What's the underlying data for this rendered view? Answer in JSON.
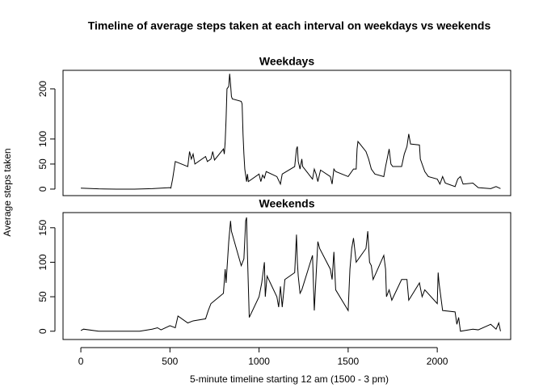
{
  "title": "Timeline of average steps taken at each interval on weekdays vs weekends",
  "x_label": "5-minute timeline starting 12 am (1500 - 3 pm)",
  "y_label": "Average steps taken",
  "chart_data": [
    {
      "type": "line",
      "title": "Weekdays",
      "color": "#000000",
      "x": [
        0,
        100,
        200,
        300,
        400,
        500,
        505,
        515,
        530,
        600,
        610,
        620,
        630,
        640,
        700,
        710,
        730,
        740,
        750,
        800,
        805,
        810,
        815,
        820,
        830,
        835,
        840,
        845,
        850,
        900,
        905,
        910,
        915,
        920,
        930,
        935,
        940,
        1000,
        1010,
        1020,
        1030,
        1040,
        1100,
        1120,
        1130,
        1200,
        1210,
        1215,
        1220,
        1230,
        1240,
        1245,
        1300,
        1310,
        1320,
        1330,
        1345,
        1400,
        1410,
        1420,
        1430,
        1500,
        1530,
        1545,
        1550,
        1555,
        1600,
        1615,
        1630,
        1650,
        1700,
        1710,
        1730,
        1740,
        1750,
        1800,
        1815,
        1830,
        1840,
        1850,
        1900,
        1905,
        1930,
        1950,
        2000,
        2015,
        2030,
        2045,
        2100,
        2115,
        2130,
        2145,
        2200,
        2230,
        2300,
        2330,
        2355
      ],
      "values": [
        2,
        0.5,
        0,
        0,
        1,
        3,
        2,
        20,
        55,
        45,
        75,
        60,
        70,
        50,
        65,
        55,
        60,
        75,
        58,
        80,
        70,
        95,
        140,
        200,
        205,
        230,
        210,
        185,
        180,
        175,
        170,
        110,
        70,
        40,
        15,
        30,
        15,
        30,
        15,
        28,
        22,
        35,
        25,
        10,
        30,
        45,
        80,
        85,
        55,
        40,
        60,
        45,
        20,
        40,
        30,
        15,
        38,
        25,
        10,
        40,
        35,
        25,
        40,
        40,
        80,
        95,
        75,
        60,
        40,
        30,
        25,
        45,
        80,
        50,
        45,
        45,
        70,
        85,
        110,
        90,
        88,
        60,
        35,
        25,
        20,
        10,
        25,
        12,
        5,
        20,
        25,
        10,
        12,
        3,
        1,
        5,
        1
      ],
      "xlim": [
        -100,
        2412
      ],
      "ylim": [
        -13,
        237
      ],
      "yticks": [
        0,
        50,
        100,
        200
      ]
    },
    {
      "type": "line",
      "title": "Weekends",
      "color": "#000000",
      "x": [
        0,
        15,
        100,
        200,
        330,
        400,
        430,
        450,
        500,
        530,
        545,
        600,
        630,
        700,
        715,
        730,
        800,
        810,
        815,
        830,
        840,
        845,
        900,
        915,
        925,
        930,
        935,
        945,
        1000,
        1015,
        1030,
        1035,
        1045,
        1100,
        1110,
        1120,
        1130,
        1145,
        1200,
        1210,
        1215,
        1220,
        1230,
        1240,
        1300,
        1310,
        1330,
        1340,
        1400,
        1410,
        1420,
        1430,
        1500,
        1510,
        1520,
        1530,
        1545,
        1600,
        1610,
        1620,
        1630,
        1640,
        1700,
        1710,
        1715,
        1730,
        1745,
        1800,
        1830,
        1840,
        1900,
        1915,
        1930,
        2000,
        2005,
        2010,
        2015,
        2030,
        2100,
        2110,
        2120,
        2130,
        2200,
        2230,
        2300,
        2330,
        2345,
        2355
      ],
      "values": [
        1,
        3,
        0,
        0,
        0,
        3,
        5,
        2,
        8,
        5,
        22,
        12,
        15,
        18,
        30,
        40,
        55,
        90,
        70,
        130,
        160,
        145,
        95,
        105,
        160,
        165,
        110,
        20,
        50,
        70,
        100,
        50,
        80,
        50,
        35,
        65,
        35,
        75,
        85,
        140,
        100,
        80,
        55,
        60,
        110,
        30,
        130,
        120,
        90,
        75,
        115,
        60,
        30,
        90,
        120,
        135,
        100,
        120,
        145,
        100,
        95,
        75,
        110,
        90,
        50,
        60,
        45,
        75,
        75,
        45,
        70,
        50,
        60,
        40,
        85,
        70,
        60,
        30,
        28,
        10,
        20,
        0,
        3,
        2,
        10,
        3,
        12,
        0
      ],
      "xlim": [
        -100,
        2412
      ],
      "ylim": [
        -12,
        172
      ],
      "yticks": [
        0,
        50,
        100,
        150
      ],
      "xticks": [
        0,
        500,
        1000,
        1500,
        2000
      ]
    }
  ]
}
